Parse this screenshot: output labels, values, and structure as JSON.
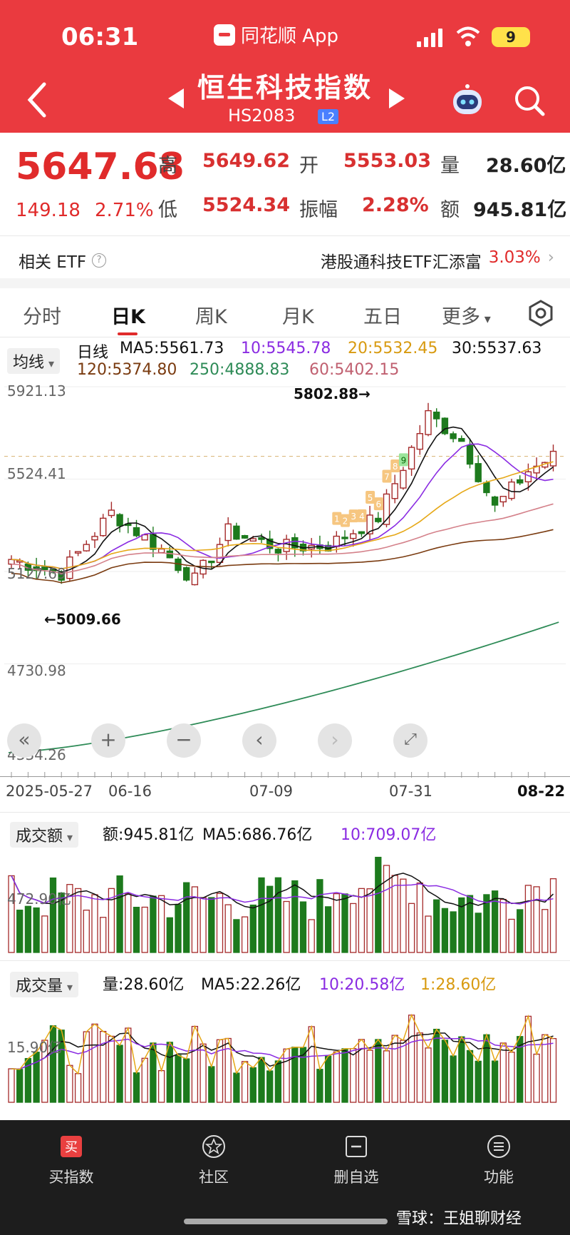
{
  "status_bar": {
    "time": "06:31",
    "app_name": "同花顺 App",
    "battery": "9"
  },
  "header": {
    "title": "恒生科技指数",
    "code": "HS2083",
    "badge": "L2"
  },
  "quote": {
    "price": "5647.68",
    "change": "149.18",
    "change_pct": "2.71%",
    "high_label": "高",
    "high": "5649.62",
    "open_label": "开",
    "open": "5553.03",
    "vol_label": "量",
    "vol": "28.60亿",
    "low_label": "低",
    "low": "5524.34",
    "amp_label": "振幅",
    "amp": "2.28%",
    "amt_label": "额",
    "amt": "945.81亿"
  },
  "etf": {
    "left_label": "相关 ETF",
    "name": "港股通科技ETF汇添富",
    "pct": "3.03%"
  },
  "tabs": [
    "分时",
    "日K",
    "周K",
    "月K",
    "五日",
    "更多"
  ],
  "ma_panel": {
    "chip": "均线",
    "period": "日线",
    "ma5": "MA5:5561.73",
    "ma10": "10:5545.78",
    "ma20": "20:5532.45",
    "ma30": "30:5537.63",
    "ma120": "120:5374.80",
    "ma250": "250:4888.83",
    "ma60": "60:5402.15"
  },
  "kline": {
    "y_labels": [
      "5921.13",
      "5524.41",
      "5127.69",
      "4730.98",
      "4334.26"
    ],
    "high_ann": "5802.88→",
    "low_ann": "←5009.66",
    "x_labels": [
      "2025-05-27",
      "06-16",
      "07-09",
      "07-31",
      "08-22"
    ],
    "demark": [
      "1",
      "2",
      "3",
      "4",
      "5",
      "6",
      "7",
      "8",
      "9"
    ]
  },
  "amount_panel": {
    "chip": "成交额",
    "amt": "额:945.81亿",
    "ma5": "MA5:686.76亿",
    "ma10": "10:709.07亿",
    "ylab": "472.90亿"
  },
  "volume_panel": {
    "chip": "成交量",
    "vol": "量:28.60亿",
    "ma5": "MA5:22.26亿",
    "ma10": "10:20.58亿",
    "ma1": "1:28.60亿",
    "ylab": "15.90亿"
  },
  "bottom_nav": [
    "买指数",
    "社区",
    "删自选",
    "功能"
  ],
  "watermark": "雪球：王姐聊财经",
  "colors": {
    "up": "#a52a2a",
    "down": "#1d7a1d",
    "ma5": "#111111",
    "ma10": "#8a2be2",
    "ma20": "#e6a817",
    "ma60": "#d4818a",
    "ma120": "#7a3b10",
    "ma250": "#2e8b57",
    "header": "#ea3a3f"
  }
}
